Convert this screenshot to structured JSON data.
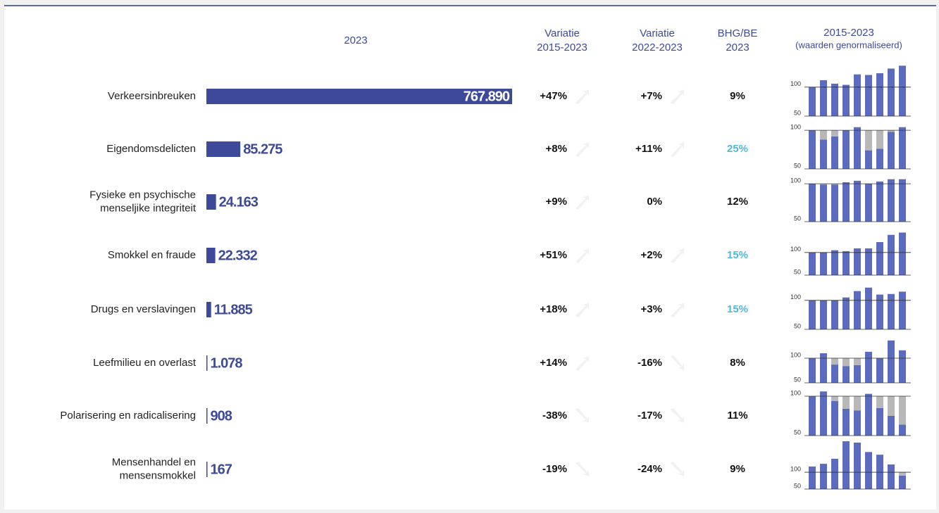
{
  "header": {
    "bar_column": "2023",
    "variation_1": [
      "Variatie",
      "2015-2023"
    ],
    "variation_2": [
      "Variatie",
      "2022-2023"
    ],
    "share": [
      "BHG/BE",
      "2023"
    ],
    "trend": [
      "2015-2023",
      "(waarden genormaliseerd)"
    ]
  },
  "xlim": [
    0,
    767890
  ],
  "rows": [
    {
      "label": [
        "Verkeersinbreuken"
      ],
      "value": 767890,
      "value_label": "767.890",
      "var_2015": 47,
      "var_2015_label": "+47%",
      "var_2022": 7,
      "var_2022_label": "+7%",
      "share": 9,
      "share_label": "9%",
      "share_color": "#111111",
      "trend": [
        100,
        112,
        106,
        104,
        122,
        121,
        124,
        132,
        137
      ],
      "trend_ylim": [
        50,
        118
      ],
      "trend_yticks": [
        50,
        100
      ]
    },
    {
      "label": [
        "Eigendomsdelicten"
      ],
      "value": 85275,
      "value_label": "85.275",
      "var_2015": 8,
      "var_2015_label": "+8%",
      "var_2022": 11,
      "var_2022_label": "+11%",
      "share": 25,
      "share_label": "25%",
      "share_color": "#4fb8dc",
      "trend": [
        100,
        88,
        92,
        100,
        104,
        74,
        76,
        98,
        104
      ],
      "trend_ylim": [
        50,
        101
      ],
      "trend_yticks": [
        50,
        100
      ]
    },
    {
      "label": [
        "Fysieke en psychische",
        "menseljike integriteit"
      ],
      "value": 24163,
      "value_label": "24.163",
      "var_2015": 9,
      "var_2015_label": "+9%",
      "var_2022": 0,
      "var_2022_label": "0%",
      "share": 12,
      "share_label": "12%",
      "share_color": "#111111",
      "trend": [
        100,
        99,
        99,
        102,
        104,
        100,
        103,
        106,
        106
      ],
      "trend_ylim": [
        50,
        102
      ],
      "trend_yticks": [
        50,
        100
      ]
    },
    {
      "label": [
        "Smokkel en fraude"
      ],
      "value": 22332,
      "value_label": "22.332",
      "var_2015": 51,
      "var_2015_label": "+51%",
      "var_2022": 2,
      "var_2022_label": "+2%",
      "share": 15,
      "share_label": "15%",
      "share_color": "#4fb8dc",
      "trend": [
        100,
        100,
        105,
        103,
        109,
        109,
        123,
        139,
        144
      ],
      "trend_ylim": [
        50,
        137
      ],
      "trend_yticks": [
        50,
        100
      ]
    },
    {
      "label": [
        "Drugs en verslavingen"
      ],
      "value": 11885,
      "value_label": "11.885",
      "var_2015": 18,
      "var_2015_label": "+18%",
      "var_2022": 3,
      "var_2022_label": "+3%",
      "share": 15,
      "share_label": "15%",
      "share_color": "#4fb8dc",
      "trend": [
        100,
        100,
        100,
        105,
        116,
        122,
        110,
        111,
        115
      ],
      "trend_ylim": [
        50,
        118
      ],
      "trend_yticks": [
        50,
        100
      ]
    },
    {
      "label": [
        "Leefmilieu en overlast"
      ],
      "value": 1078,
      "value_label": "1.078",
      "var_2015": 14,
      "var_2015_label": "+14%",
      "var_2022": -16,
      "var_2022_label": "-16%",
      "share": 8,
      "share_label": "8%",
      "share_color": "#111111",
      "trend": [
        100,
        110,
        87,
        84,
        86,
        113,
        100,
        136,
        116
      ],
      "trend_ylim": [
        50,
        130
      ],
      "trend_yticks": [
        50,
        100
      ]
    },
    {
      "label": [
        "Polarisering en radicalisering"
      ],
      "value": 908,
      "var_2015": -38,
      "var_2015_label": "-38%",
      "var_2022": -17,
      "var_2022_label": "-17%",
      "share": 11,
      "share_label": "11%",
      "share_color": "#111111",
      "trend": [
        100,
        106,
        94,
        84,
        82,
        103,
        85,
        75,
        64
      ],
      "trend_ylim": [
        50,
        100
      ],
      "trend_yticks": [
        50,
        100
      ]
    },
    {
      "label": [
        "Mensenhandel en",
        "mensensmokkel"
      ],
      "value": 167,
      "var_2015": -19,
      "var_2015_label": "-19%",
      "var_2022": -24,
      "var_2022_label": "-24%",
      "share": 9,
      "share_label": "9%",
      "share_color": "#111111",
      "trend": [
        117,
        125,
        140,
        192,
        188,
        160,
        152,
        123,
        90
      ],
      "trend_ylim": [
        50,
        167
      ],
      "trend_yticks": [
        50,
        100
      ]
    }
  ]
}
